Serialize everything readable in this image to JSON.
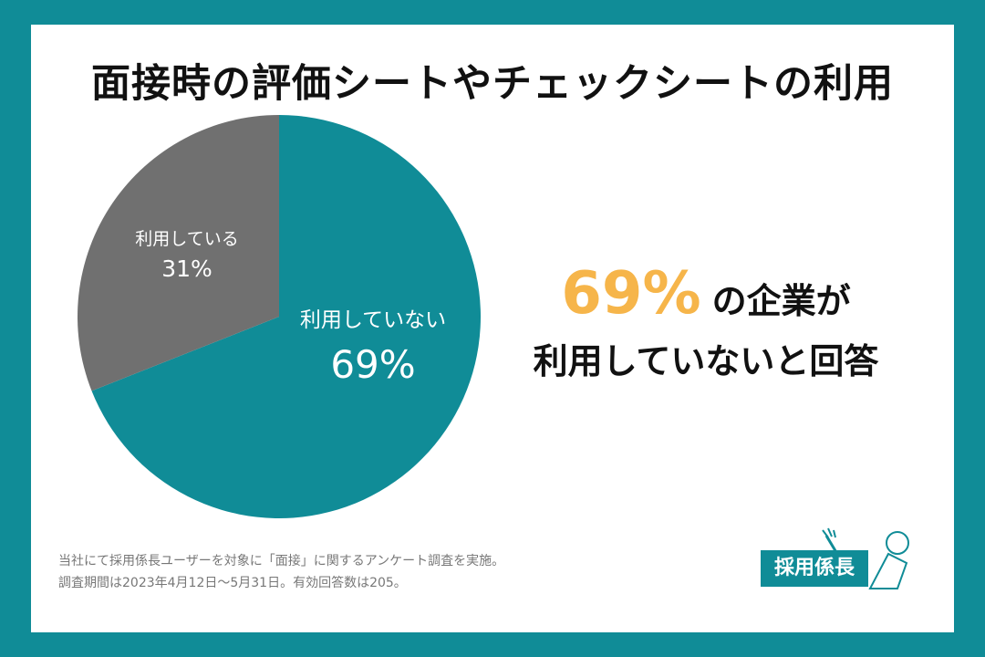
{
  "title": "面接時の評価シートやチェックシートの利用",
  "chart_data": {
    "type": "pie",
    "slices": [
      {
        "label": "利用していない",
        "value": 69,
        "display": "69%",
        "color": "#108c97"
      },
      {
        "label": "利用している",
        "value": 31,
        "display": "31%",
        "color": "#707070"
      }
    ]
  },
  "headline": {
    "percent": "69%",
    "suffix": "の企業が",
    "line2": "利用していないと回答"
  },
  "note": {
    "line1": "当社にて採用係長ユーザーを対象に「面接」に関するアンケート調査を実施。",
    "line2": "調査期間は2023年4月12日〜5月31日。有効回答数は205。"
  },
  "logo": {
    "text": "採用係長"
  }
}
